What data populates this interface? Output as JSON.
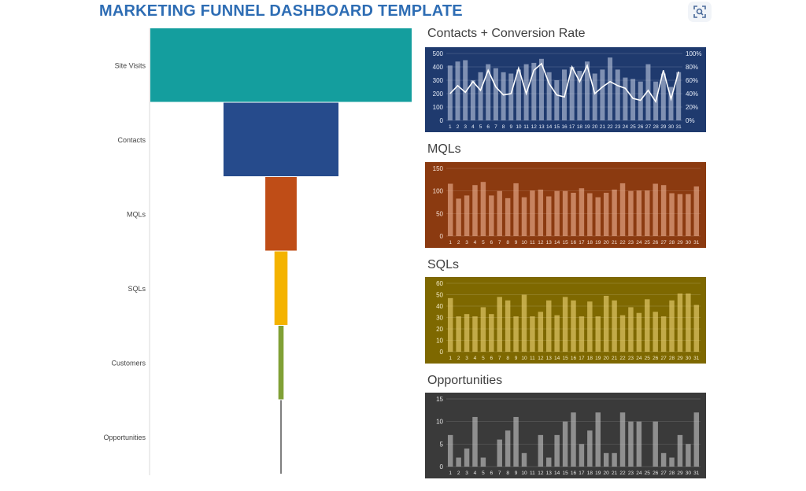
{
  "header": {
    "title": "MARKETING FUNNEL DASHBOARD TEMPLATE",
    "lens_icon": "image-search-icon"
  },
  "colors": {
    "title": "#2e6db4",
    "funnel": [
      "#149e9e",
      "#264b8c",
      "#bf4d17",
      "#f4b300",
      "#80a036",
      "#555555"
    ],
    "contacts_panel": "#1f3a6e",
    "mqls_panel": "#8b3a10",
    "sqls_panel": "#7e6800",
    "opps_panel": "#3a3a3a"
  },
  "chart_data": [
    {
      "type": "bar",
      "orientation": "horizontal-funnel",
      "categories": [
        "Site Visits",
        "Contacts",
        "MQLs",
        "SQLs",
        "Customers",
        "Opportunities"
      ],
      "values": [
        100,
        44,
        12,
        5,
        2,
        0.3
      ],
      "value_unit": "percent of widest stage (estimated from bar widths)"
    },
    {
      "type": "bar",
      "title": "Contacts + Conversion Rate",
      "categories": [
        "1",
        "2",
        "3",
        "4",
        "5",
        "6",
        "7",
        "8",
        "9",
        "10",
        "11",
        "12",
        "13",
        "14",
        "15",
        "16",
        "17",
        "18",
        "19",
        "20",
        "21",
        "22",
        "23",
        "24",
        "25",
        "26",
        "27",
        "28",
        "29",
        "30",
        "31"
      ],
      "series": [
        {
          "type": "bar",
          "values": [
            410,
            440,
            450,
            300,
            360,
            420,
            390,
            360,
            350,
            380,
            420,
            430,
            460,
            360,
            300,
            380,
            400,
            370,
            440,
            350,
            380,
            470,
            380,
            320,
            310,
            290,
            420,
            290,
            350,
            250,
            360
          ]
        },
        {
          "type": "line",
          "axis": "right",
          "values": [
            40,
            52,
            42,
            58,
            45,
            75,
            50,
            38,
            40,
            78,
            40,
            75,
            85,
            55,
            38,
            35,
            80,
            58,
            82,
            40,
            50,
            58,
            52,
            48,
            33,
            30,
            45,
            28,
            75,
            32,
            73
          ]
        }
      ],
      "ylim": [
        0,
        500
      ],
      "y_ticks": [
        "0",
        "100",
        "200",
        "300",
        "400",
        "500"
      ],
      "y2lim": [
        0,
        100
      ],
      "y2_ticks": [
        "0%",
        "20%",
        "40%",
        "60%",
        "80%",
        "100%"
      ],
      "grid": true
    },
    {
      "type": "bar",
      "title": "MQLs",
      "categories": [
        "1",
        "2",
        "3",
        "4",
        "5",
        "6",
        "7",
        "8",
        "9",
        "10",
        "11",
        "12",
        "13",
        "14",
        "15",
        "16",
        "17",
        "18",
        "19",
        "20",
        "21",
        "22",
        "23",
        "24",
        "25",
        "26",
        "27",
        "28",
        "29",
        "30",
        "31"
      ],
      "values": [
        116,
        83,
        90,
        113,
        120,
        90,
        100,
        84,
        117,
        86,
        101,
        103,
        88,
        100,
        100,
        96,
        106,
        95,
        86,
        96,
        103,
        117,
        100,
        101,
        101,
        116,
        113,
        95,
        93,
        93,
        110
      ],
      "ylim": [
        0,
        150
      ],
      "y_ticks": [
        "0",
        "50",
        "100",
        "150"
      ],
      "grid": true
    },
    {
      "type": "bar",
      "title": "SQLs",
      "categories": [
        "1",
        "2",
        "3",
        "4",
        "5",
        "6",
        "7",
        "8",
        "9",
        "10",
        "11",
        "12",
        "13",
        "14",
        "15",
        "16",
        "17",
        "18",
        "19",
        "20",
        "21",
        "22",
        "23",
        "24",
        "25",
        "26",
        "27",
        "28",
        "29",
        "30",
        "31"
      ],
      "values": [
        47,
        31,
        33,
        31,
        39,
        33,
        48,
        45,
        31,
        50,
        31,
        35,
        45,
        32,
        48,
        45,
        31,
        44,
        31,
        49,
        45,
        32,
        39,
        34,
        46,
        35,
        31,
        45,
        51,
        51,
        41
      ],
      "ylim": [
        0,
        60
      ],
      "y_ticks": [
        "0",
        "10",
        "20",
        "30",
        "40",
        "50",
        "60"
      ],
      "grid": true
    },
    {
      "type": "bar",
      "title": "Opportunities",
      "categories": [
        "1",
        "2",
        "3",
        "4",
        "5",
        "6",
        "7",
        "8",
        "9",
        "10",
        "11",
        "12",
        "13",
        "14",
        "15",
        "16",
        "17",
        "18",
        "19",
        "20",
        "21",
        "22",
        "23",
        "24",
        "25",
        "26",
        "27",
        "28",
        "29",
        "30",
        "31"
      ],
      "values": [
        7,
        2,
        4,
        11,
        2,
        0,
        6,
        8,
        11,
        3,
        0,
        7,
        2,
        7,
        10,
        12,
        5,
        8,
        12,
        3,
        3,
        12,
        10,
        10,
        0,
        10,
        3,
        2,
        7,
        5,
        12
      ],
      "ylim": [
        0,
        15
      ],
      "y_ticks": [
        "0",
        "5",
        "10",
        "15"
      ],
      "grid": true
    }
  ]
}
